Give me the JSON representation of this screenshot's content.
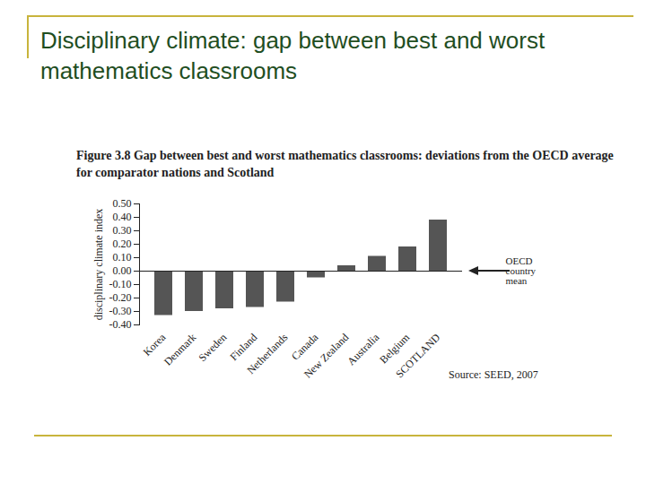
{
  "chart_data": {
    "type": "bar",
    "title": "Disciplinary climate: gap between best and worst mathematics classrooms",
    "subtitle": "Figure 3.8 Gap between best and worst mathematics classrooms: deviations from the OECD average for comparator nations and Scotland",
    "ylabel": "disciplinary climate index",
    "annotation": "OECD country mean",
    "source": "Source: SEED, 2007",
    "categories": [
      "Korea",
      "Denmark",
      "Sweden",
      "Finland",
      "Netherlands",
      "Canada",
      "New Zealand",
      "Australia",
      "Belgium",
      "SCOTLAND"
    ],
    "values": [
      -0.33,
      -0.3,
      -0.28,
      -0.27,
      -0.23,
      -0.05,
      0.04,
      0.11,
      0.18,
      0.38
    ],
    "color": "#555555",
    "ylim": [
      -0.4,
      0.5
    ],
    "yticks": [
      {
        "value": 0.5,
        "label": "0.50"
      },
      {
        "value": 0.4,
        "label": "0.40"
      },
      {
        "value": 0.3,
        "label": "0.30"
      },
      {
        "value": 0.2,
        "label": "0.20"
      },
      {
        "value": 0.1,
        "label": "0.10"
      },
      {
        "value": 0,
        "label": "0.00"
      },
      {
        "value": -0.1,
        "label": "-0.10"
      },
      {
        "value": -0.2,
        "label": "-0.20"
      },
      {
        "value": -0.3,
        "label": "-0.30"
      },
      {
        "value": -0.4,
        "label": "-0.40"
      }
    ],
    "grid": false
  }
}
